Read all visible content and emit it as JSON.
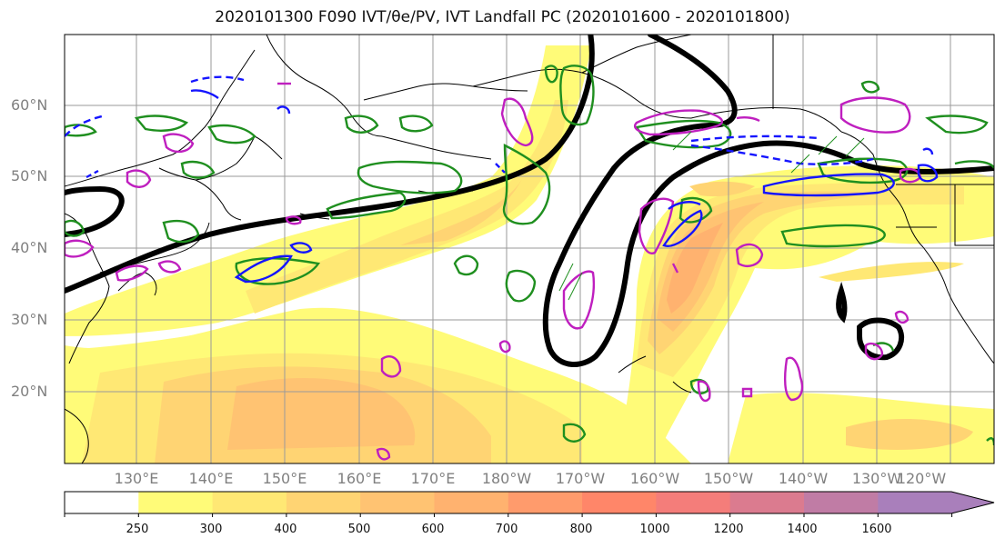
{
  "title": "2020101300 F090 IVT/θe/PV, IVT Landfall PC (2020101600 - 2020101800)",
  "map": {
    "lat_labels": [
      "60°N",
      "50°N",
      "40°N",
      "30°N",
      "20°N"
    ],
    "lon_labels": [
      "130°E",
      "140°E",
      "150°E",
      "160°E",
      "170°E",
      "180°W",
      "170°W",
      "160°W",
      "150°W",
      "140°W",
      "130°W",
      "120°W"
    ],
    "contour_colors": {
      "theta_e": "#000000",
      "pv_positive": "#1f8f1f",
      "pv_negative": "#bf1fbf",
      "landfall_pc": "#1515ff",
      "coastline": "#000000"
    }
  },
  "colorbar": {
    "ticks": [
      "250",
      "300",
      "400",
      "500",
      "600",
      "700",
      "800",
      "1000",
      "1200",
      "1400",
      "1600"
    ],
    "colors": [
      "#ffffff",
      "#fffb78",
      "#ffe874",
      "#ffd473",
      "#ffc372",
      "#ffb26f",
      "#ff9b6c",
      "#ff8669",
      "#f47d7a",
      "#db7b8f",
      "#c07ca5",
      "#a97fbb"
    ]
  }
}
